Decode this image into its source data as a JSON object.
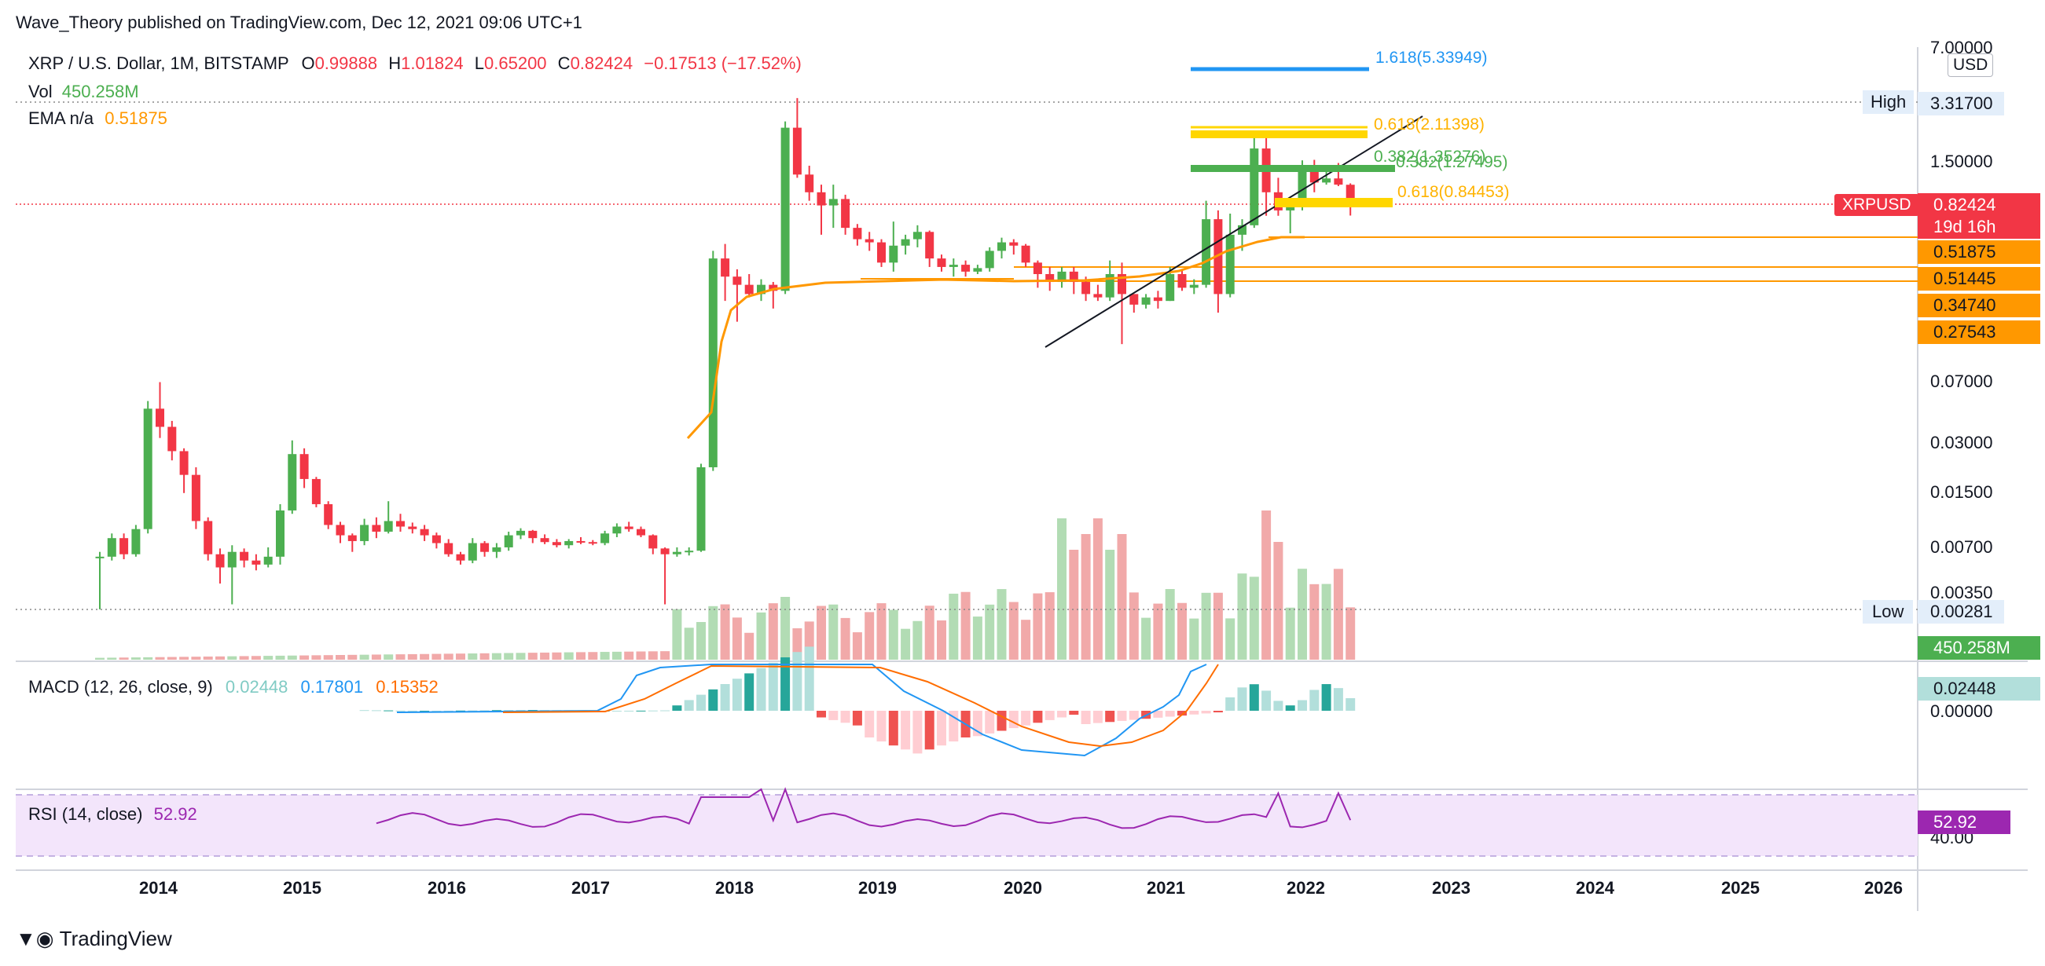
{
  "header": {
    "publisher": "Wave_Theory published on TradingView.com, Dec 12, 2021 09:06 UTC+1",
    "footer_brand": "TradingView"
  },
  "legend": {
    "symbol": "XRP / U.S. Dollar, 1M, BITSTAMP",
    "o_label": "O",
    "o_value": "0.99888",
    "h_label": "H",
    "h_value": "1.01824",
    "l_label": "L",
    "l_value": "0.65200",
    "c_label": "C",
    "c_value": "0.82424",
    "change": "−0.17513 (−17.52%)",
    "vol_label": "Vol",
    "vol_value": "450.258M",
    "ema_label": "EMA n/a",
    "ema_value": "0.51875"
  },
  "macd_legend": {
    "label": "MACD (12, 26, close, 9)",
    "hist": "0.02448",
    "macd": "0.17801",
    "signal": "0.15352"
  },
  "rsi_legend": {
    "label": "RSI (14, close)",
    "value": "52.92"
  },
  "price_axis": {
    "currency": "USD",
    "ticks": [
      "7.00000",
      "1.50000",
      "0.07000",
      "0.03000",
      "0.01500",
      "0.00700",
      "0.00350"
    ],
    "high_label": "High",
    "high_value": "3.31700",
    "low_label": "Low",
    "low_value": "0.00281",
    "symbol_tag": "XRPUSD",
    "last_price": "0.82424",
    "countdown": "19d 16h",
    "level_tags": [
      "0.51875",
      "0.51445",
      "0.34740",
      "0.27543"
    ],
    "vol_tag": "450.258M"
  },
  "macd_axis": {
    "hist_tag": "0.02448",
    "zero_tick": "0.00000"
  },
  "rsi_axis": {
    "tag": "52.92",
    "tick": "40.00"
  },
  "time_axis": [
    "2014",
    "2015",
    "2016",
    "2017",
    "2018",
    "2019",
    "2020",
    "2021",
    "2022",
    "2023",
    "2024",
    "2025",
    "2026"
  ],
  "fib_labels": {
    "ext": "1.618(5.33949)",
    "upper": "0.618(2.11398)",
    "green_a": "0.382(1.27495)",
    "green_b": "0.382(1.35276)",
    "lower": "0.618(0.84453)"
  },
  "colors": {
    "up": "#26a69a",
    "down": "#ef5350",
    "candle_up": "#4caf50",
    "candle_down": "#f23645",
    "ema": "#ff9800",
    "macd_line": "#2196f3",
    "signal_line": "#ff6d00",
    "rsi_line": "#9c27b0",
    "rsi_band": "#f3e5fb",
    "fib_yellow": "#ffd600",
    "fib_green": "#4caf50",
    "fib_blue": "#2196f3"
  },
  "chart_data": {
    "type": "candlestick",
    "timeframe": "1M",
    "symbol": "XRPUSD",
    "scale": "log",
    "candles_ohlc": [
      [
        0.0058,
        0.0062,
        0.0028,
        0.0058
      ],
      [
        0.0058,
        0.008,
        0.0055,
        0.0075
      ],
      [
        0.0075,
        0.008,
        0.0056,
        0.006
      ],
      [
        0.006,
        0.009,
        0.0058,
        0.0085
      ],
      [
        0.0085,
        0.05,
        0.008,
        0.045
      ],
      [
        0.045,
        0.065,
        0.03,
        0.035
      ],
      [
        0.035,
        0.038,
        0.022,
        0.025
      ],
      [
        0.025,
        0.026,
        0.014,
        0.018
      ],
      [
        0.018,
        0.02,
        0.0085,
        0.0095
      ],
      [
        0.0095,
        0.01,
        0.0055,
        0.006
      ],
      [
        0.006,
        0.0065,
        0.004,
        0.005
      ],
      [
        0.005,
        0.0068,
        0.003,
        0.0062
      ],
      [
        0.0062,
        0.0065,
        0.005,
        0.0055
      ],
      [
        0.0055,
        0.006,
        0.0048,
        0.0052
      ],
      [
        0.0052,
        0.0066,
        0.005,
        0.0058
      ],
      [
        0.0058,
        0.012,
        0.0052,
        0.011
      ],
      [
        0.011,
        0.029,
        0.0105,
        0.024
      ],
      [
        0.024,
        0.026,
        0.015,
        0.017
      ],
      [
        0.017,
        0.0175,
        0.0115,
        0.012
      ],
      [
        0.012,
        0.0125,
        0.0085,
        0.009
      ],
      [
        0.009,
        0.0094,
        0.007,
        0.0078
      ],
      [
        0.0078,
        0.008,
        0.0062,
        0.0072
      ],
      [
        0.0072,
        0.0098,
        0.0068,
        0.009
      ],
      [
        0.009,
        0.01,
        0.0075,
        0.0082
      ],
      [
        0.0082,
        0.0125,
        0.008,
        0.0095
      ],
      [
        0.0095,
        0.0105,
        0.0082,
        0.0088
      ],
      [
        0.0088,
        0.0093,
        0.008,
        0.0085
      ],
      [
        0.0085,
        0.009,
        0.0072,
        0.0078
      ],
      [
        0.0078,
        0.0081,
        0.0065,
        0.007
      ],
      [
        0.007,
        0.0074,
        0.0058,
        0.006
      ],
      [
        0.006,
        0.0062,
        0.0052,
        0.0055
      ],
      [
        0.0055,
        0.0075,
        0.0053,
        0.007
      ],
      [
        0.007,
        0.0072,
        0.0058,
        0.0062
      ],
      [
        0.0062,
        0.007,
        0.0057,
        0.0066
      ],
      [
        0.0066,
        0.0082,
        0.0063,
        0.0078
      ],
      [
        0.0078,
        0.0086,
        0.0074,
        0.0083
      ],
      [
        0.0083,
        0.0084,
        0.007,
        0.0075
      ],
      [
        0.0075,
        0.0079,
        0.0069,
        0.0071
      ],
      [
        0.0071,
        0.0074,
        0.0066,
        0.0068
      ],
      [
        0.0068,
        0.0074,
        0.0065,
        0.0072
      ],
      [
        0.0072,
        0.0076,
        0.0069,
        0.0071
      ],
      [
        0.0071,
        0.0073,
        0.0068,
        0.007
      ],
      [
        0.007,
        0.0083,
        0.0068,
        0.008
      ],
      [
        0.008,
        0.0092,
        0.0076,
        0.0088
      ],
      [
        0.0088,
        0.0094,
        0.0082,
        0.0085
      ],
      [
        0.0085,
        0.0088,
        0.0076,
        0.0078
      ],
      [
        0.0078,
        0.0079,
        0.006,
        0.0065
      ],
      [
        0.0065,
        0.0066,
        0.003,
        0.006
      ],
      [
        0.006,
        0.0066,
        0.0058,
        0.0062
      ],
      [
        0.0062,
        0.0066,
        0.0059,
        0.0063
      ],
      [
        0.0063,
        0.021,
        0.0062,
        0.02
      ],
      [
        0.02,
        0.4,
        0.019,
        0.36
      ],
      [
        0.36,
        0.44,
        0.2,
        0.28
      ],
      [
        0.28,
        0.31,
        0.15,
        0.25
      ],
      [
        0.25,
        0.29,
        0.21,
        0.22
      ],
      [
        0.22,
        0.27,
        0.2,
        0.25
      ],
      [
        0.25,
        0.26,
        0.18,
        0.23
      ],
      [
        0.23,
        2.4,
        0.22,
        2.2
      ],
      [
        2.2,
        3.317,
        1.1,
        1.15
      ],
      [
        1.15,
        1.3,
        0.8,
        0.9
      ],
      [
        0.9,
        1.0,
        0.5,
        0.75
      ],
      [
        0.75,
        1.0,
        0.55,
        0.82
      ],
      [
        0.82,
        0.87,
        0.5,
        0.55
      ],
      [
        0.55,
        0.58,
        0.43,
        0.47
      ],
      [
        0.47,
        0.52,
        0.4,
        0.45
      ],
      [
        0.45,
        0.47,
        0.32,
        0.34
      ],
      [
        0.34,
        0.6,
        0.3,
        0.43
      ],
      [
        0.43,
        0.5,
        0.38,
        0.47
      ],
      [
        0.47,
        0.57,
        0.42,
        0.52
      ],
      [
        0.52,
        0.53,
        0.32,
        0.36
      ],
      [
        0.36,
        0.38,
        0.3,
        0.32
      ],
      [
        0.32,
        0.36,
        0.28,
        0.33
      ],
      [
        0.33,
        0.35,
        0.28,
        0.3
      ],
      [
        0.3,
        0.33,
        0.29,
        0.315
      ],
      [
        0.315,
        0.42,
        0.3,
        0.4
      ],
      [
        0.4,
        0.48,
        0.36,
        0.45
      ],
      [
        0.45,
        0.47,
        0.38,
        0.43
      ],
      [
        0.43,
        0.44,
        0.32,
        0.34
      ],
      [
        0.34,
        0.35,
        0.24,
        0.29
      ],
      [
        0.29,
        0.32,
        0.23,
        0.26
      ],
      [
        0.26,
        0.32,
        0.24,
        0.3
      ],
      [
        0.3,
        0.32,
        0.22,
        0.26
      ],
      [
        0.26,
        0.28,
        0.2,
        0.22
      ],
      [
        0.22,
        0.25,
        0.2,
        0.21
      ],
      [
        0.21,
        0.35,
        0.2,
        0.29
      ],
      [
        0.29,
        0.34,
        0.11,
        0.22
      ],
      [
        0.22,
        0.22,
        0.17,
        0.19
      ],
      [
        0.19,
        0.22,
        0.18,
        0.21
      ],
      [
        0.21,
        0.23,
        0.18,
        0.2
      ],
      [
        0.2,
        0.32,
        0.2,
        0.29
      ],
      [
        0.29,
        0.31,
        0.23,
        0.24
      ],
      [
        0.24,
        0.27,
        0.22,
        0.25
      ],
      [
        0.25,
        0.8,
        0.24,
        0.62
      ],
      [
        0.62,
        0.7,
        0.17,
        0.22
      ],
      [
        0.22,
        0.67,
        0.21,
        0.5
      ],
      [
        0.5,
        0.62,
        0.4,
        0.57
      ],
      [
        0.57,
        1.96,
        0.55,
        1.65
      ],
      [
        1.65,
        1.97,
        0.65,
        0.9
      ],
      [
        0.9,
        1.1,
        0.65,
        0.7
      ],
      [
        0.7,
        0.8,
        0.51,
        0.74
      ],
      [
        0.74,
        1.4,
        0.7,
        1.2
      ],
      [
        1.2,
        1.41,
        0.9,
        1.03
      ],
      [
        1.03,
        1.25,
        1.0,
        1.09
      ],
      [
        1.09,
        1.35,
        0.98,
        1.0
      ],
      [
        0.9988,
        1.0182,
        0.652,
        0.8242
      ]
    ],
    "ema_levels": [
      "0.51875"
    ],
    "price_levels": [
      "0.51875",
      "0.51445",
      "0.34740",
      "0.27543"
    ],
    "fibonacci": [
      {
        "label": "1.618(5.33949)",
        "price": 5.33949
      },
      {
        "label": "0.618(2.11398)",
        "price": 2.11398
      },
      {
        "label": "0.382(1.35276)",
        "price": 1.35276
      },
      {
        "label": "0.382(1.27495)",
        "price": 1.27495
      },
      {
        "label": "0.618(0.84453)",
        "price": 0.84453
      }
    ],
    "last_values": {
      "close": 0.82424,
      "high": 3.317,
      "low": 0.00281,
      "volume": "450.258M",
      "macd": 0.17801,
      "signal": 0.15352,
      "histogram": 0.02448,
      "rsi": 52.92
    }
  }
}
